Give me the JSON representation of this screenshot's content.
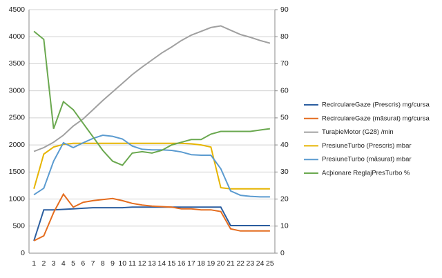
{
  "chart_data": {
    "type": "line",
    "categories": [
      "1",
      "2",
      "3",
      "4",
      "5",
      "6",
      "7",
      "8",
      "9",
      "10",
      "11",
      "12",
      "13",
      "14",
      "15",
      "16",
      "17",
      "18",
      "19",
      "20",
      "21",
      "22",
      "23",
      "24",
      "25"
    ],
    "ylim": [
      0,
      4500
    ],
    "yticks": [
      0,
      500,
      1000,
      1500,
      2000,
      2500,
      3000,
      3500,
      4000,
      4500
    ],
    "y2lim": [
      0,
      90
    ],
    "y2ticks": [
      0,
      10,
      20,
      30,
      40,
      50,
      60,
      70,
      80,
      90
    ],
    "grid": true,
    "legend": "right",
    "series": [
      {
        "name": "RecirculareGaze (Prescris)  mg/cursa",
        "color": "#2a5d9f",
        "values": [
          230,
          800,
          800,
          810,
          820,
          830,
          840,
          840,
          840,
          840,
          850,
          850,
          850,
          850,
          850,
          850,
          850,
          850,
          850,
          850,
          510,
          510,
          510,
          510,
          510
        ]
      },
      {
        "name": "RecirculareGaze (mãsurat)  mg/cursa",
        "color": "#e46c1e",
        "values": [
          230,
          320,
          750,
          1090,
          850,
          940,
          970,
          990,
          1010,
          970,
          920,
          890,
          870,
          860,
          850,
          820,
          820,
          800,
          800,
          770,
          450,
          410,
          410,
          410,
          410
        ]
      },
      {
        "name": "TuraþieMotor (G28)  /min",
        "color": "#a0a0a0",
        "values": [
          1880,
          1950,
          2050,
          2180,
          2350,
          2480,
          2650,
          2820,
          2980,
          3140,
          3300,
          3440,
          3570,
          3700,
          3810,
          3930,
          4030,
          4100,
          4170,
          4200,
          4120,
          4040,
          3990,
          3930,
          3880
        ]
      },
      {
        "name": "PresiuneTurbo (Prescris)  mbar",
        "color": "#e6b400",
        "values": [
          1190,
          1830,
          1960,
          2010,
          2030,
          2030,
          2030,
          2030,
          2030,
          2030,
          2030,
          2030,
          2030,
          2030,
          2030,
          2030,
          2020,
          2000,
          1960,
          1210,
          1190,
          1190,
          1190,
          1190,
          1190
        ]
      },
      {
        "name": "PresiuneTurbo (mãsurat)  mbar",
        "color": "#5b9bd0",
        "values": [
          1080,
          1200,
          1700,
          2040,
          1950,
          2040,
          2120,
          2180,
          2160,
          2110,
          1980,
          1920,
          1910,
          1910,
          1900,
          1870,
          1820,
          1810,
          1810,
          1560,
          1150,
          1070,
          1050,
          1040,
          1040
        ]
      },
      {
        "name": "Acþionare ReglajPresTurbo  %",
        "color": "#6aa84f",
        "axis": "y2",
        "values": [
          82,
          79,
          46,
          56,
          53,
          48,
          43,
          38,
          34,
          32.5,
          37,
          37.5,
          37,
          38,
          40,
          41,
          42,
          42,
          44,
          45,
          45,
          45,
          45,
          45.5,
          46
        ]
      }
    ]
  }
}
